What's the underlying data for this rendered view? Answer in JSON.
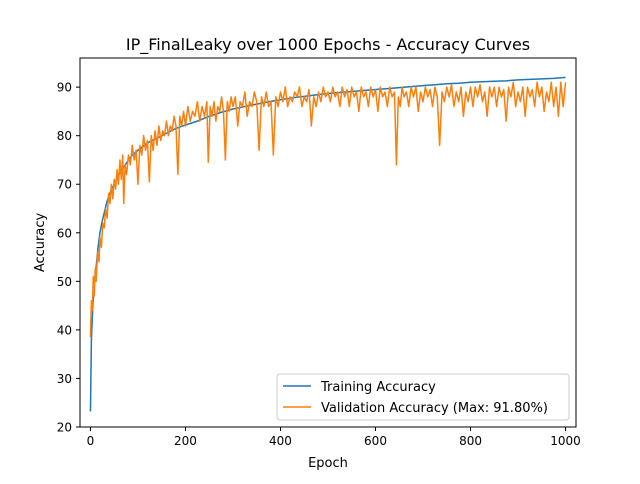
{
  "chart_data": {
    "type": "line",
    "title": "IP_FinalLeaky over 1000 Epochs - Accuracy Curves",
    "xlabel": "Epoch",
    "ylabel": "Accuracy",
    "xlim": [
      -22,
      1022
    ],
    "ylim": [
      20,
      96
    ],
    "xticks": [
      0,
      200,
      400,
      600,
      800,
      1000
    ],
    "yticks": [
      20,
      30,
      40,
      50,
      60,
      70,
      80,
      90
    ],
    "grid": false,
    "legend_position": "lower-right",
    "series": [
      {
        "name": "Training Accuracy",
        "color": "#1f77b4",
        "points": [
          [
            0,
            23.2
          ],
          [
            2,
            38
          ],
          [
            5,
            45
          ],
          [
            8,
            49
          ],
          [
            12,
            53
          ],
          [
            16,
            57
          ],
          [
            20,
            60
          ],
          [
            25,
            62.5
          ],
          [
            30,
            64.5
          ],
          [
            35,
            66.5
          ],
          [
            40,
            68
          ],
          [
            50,
            70
          ],
          [
            60,
            72
          ],
          [
            70,
            73.5
          ],
          [
            80,
            75
          ],
          [
            90,
            76.2
          ],
          [
            100,
            77
          ],
          [
            120,
            78.5
          ],
          [
            140,
            79.5
          ],
          [
            160,
            80.5
          ],
          [
            180,
            81.5
          ],
          [
            200,
            82.2
          ],
          [
            225,
            83
          ],
          [
            250,
            84
          ],
          [
            275,
            84.8
          ],
          [
            300,
            85.5
          ],
          [
            325,
            86
          ],
          [
            350,
            86.5
          ],
          [
            375,
            87
          ],
          [
            400,
            87.4
          ],
          [
            425,
            87.8
          ],
          [
            450,
            88.1
          ],
          [
            475,
            88.4
          ],
          [
            500,
            88.7
          ],
          [
            525,
            88.9
          ],
          [
            550,
            89.1
          ],
          [
            575,
            89.3
          ],
          [
            600,
            89.5
          ],
          [
            625,
            89.7
          ],
          [
            650,
            89.9
          ],
          [
            675,
            90.1
          ],
          [
            700,
            90.3
          ],
          [
            725,
            90.5
          ],
          [
            750,
            90.7
          ],
          [
            775,
            90.8
          ],
          [
            800,
            91
          ],
          [
            825,
            91.1
          ],
          [
            850,
            91.2
          ],
          [
            875,
            91.3
          ],
          [
            900,
            91.5
          ],
          [
            925,
            91.6
          ],
          [
            950,
            91.7
          ],
          [
            975,
            91.8
          ],
          [
            1000,
            92
          ]
        ]
      },
      {
        "name": "Validation Accuracy (Max: 91.80%)",
        "color": "#ff7f0e",
        "points": [
          [
            0,
            38.5
          ],
          [
            2,
            46
          ],
          [
            4,
            44
          ],
          [
            6,
            51
          ],
          [
            8,
            47
          ],
          [
            10,
            52.5
          ],
          [
            12,
            50
          ],
          [
            15,
            56
          ],
          [
            18,
            54
          ],
          [
            20,
            59
          ],
          [
            23,
            57
          ],
          [
            26,
            62
          ],
          [
            29,
            61
          ],
          [
            32,
            65
          ],
          [
            35,
            63
          ],
          [
            38,
            68
          ],
          [
            41,
            66
          ],
          [
            44,
            70
          ],
          [
            47,
            67
          ],
          [
            50,
            71
          ],
          [
            53,
            69
          ],
          [
            56,
            73
          ],
          [
            59,
            70
          ],
          [
            62,
            75
          ],
          [
            65,
            71
          ],
          [
            68,
            76
          ],
          [
            70,
            66
          ],
          [
            73,
            74
          ],
          [
            76,
            72
          ],
          [
            80,
            76
          ],
          [
            84,
            74
          ],
          [
            88,
            78
          ],
          [
            92,
            75
          ],
          [
            96,
            77
          ],
          [
            100,
            70
          ],
          [
            104,
            78
          ],
          [
            108,
            76
          ],
          [
            112,
            80
          ],
          [
            116,
            77
          ],
          [
            120,
            79
          ],
          [
            124,
            70.5
          ],
          [
            128,
            80
          ],
          [
            132,
            77
          ],
          [
            136,
            81
          ],
          [
            140,
            78
          ],
          [
            144,
            82
          ],
          [
            148,
            79
          ],
          [
            152,
            81
          ],
          [
            156,
            80
          ],
          [
            160,
            83
          ],
          [
            164,
            80
          ],
          [
            168,
            82
          ],
          [
            172,
            81
          ],
          [
            176,
            84
          ],
          [
            180,
            82
          ],
          [
            184,
            72
          ],
          [
            188,
            84
          ],
          [
            192,
            82
          ],
          [
            196,
            85
          ],
          [
            200,
            82
          ],
          [
            205,
            86
          ],
          [
            210,
            83
          ],
          [
            215,
            85
          ],
          [
            220,
            84
          ],
          [
            225,
            87
          ],
          [
            230,
            83
          ],
          [
            235,
            86
          ],
          [
            240,
            84
          ],
          [
            245,
            87
          ],
          [
            248,
            74.5
          ],
          [
            252,
            86
          ],
          [
            256,
            84
          ],
          [
            260,
            87
          ],
          [
            264,
            83
          ],
          [
            268,
            86
          ],
          [
            272,
            85
          ],
          [
            276,
            88
          ],
          [
            280,
            85
          ],
          [
            284,
            75
          ],
          [
            288,
            87
          ],
          [
            292,
            85
          ],
          [
            296,
            88
          ],
          [
            300,
            86
          ],
          [
            305,
            88
          ],
          [
            310,
            82
          ],
          [
            315,
            87
          ],
          [
            320,
            86
          ],
          [
            325,
            89
          ],
          [
            330,
            84
          ],
          [
            335,
            87
          ],
          [
            340,
            86
          ],
          [
            345,
            89
          ],
          [
            350,
            87
          ],
          [
            355,
            77
          ],
          [
            360,
            88
          ],
          [
            365,
            86
          ],
          [
            370,
            89
          ],
          [
            375,
            86
          ],
          [
            380,
            87
          ],
          [
            385,
            76
          ],
          [
            390,
            88
          ],
          [
            395,
            86
          ],
          [
            400,
            89
          ],
          [
            405,
            87
          ],
          [
            410,
            90
          ],
          [
            415,
            86
          ],
          [
            420,
            88
          ],
          [
            425,
            87
          ],
          [
            430,
            89
          ],
          [
            435,
            88
          ],
          [
            440,
            90
          ],
          [
            445,
            86
          ],
          [
            450,
            88
          ],
          [
            455,
            87
          ],
          [
            460,
            89.5
          ],
          [
            465,
            82
          ],
          [
            470,
            88
          ],
          [
            475,
            86
          ],
          [
            480,
            89
          ],
          [
            485,
            87
          ],
          [
            490,
            90
          ],
          [
            495,
            88
          ],
          [
            500,
            89
          ],
          [
            505,
            87
          ],
          [
            510,
            90
          ],
          [
            515,
            88
          ],
          [
            520,
            89
          ],
          [
            525,
            86
          ],
          [
            530,
            90
          ],
          [
            535,
            88
          ],
          [
            540,
            89.5
          ],
          [
            545,
            86
          ],
          [
            550,
            90
          ],
          [
            555,
            88
          ],
          [
            560,
            89
          ],
          [
            565,
            85
          ],
          [
            570,
            90
          ],
          [
            575,
            88
          ],
          [
            580,
            89
          ],
          [
            585,
            86
          ],
          [
            590,
            90
          ],
          [
            595,
            88
          ],
          [
            600,
            89.5
          ],
          [
            605,
            85
          ],
          [
            610,
            90
          ],
          [
            615,
            88
          ],
          [
            620,
            89
          ],
          [
            625,
            86
          ],
          [
            630,
            90
          ],
          [
            635,
            88
          ],
          [
            640,
            89
          ],
          [
            644,
            74
          ],
          [
            648,
            88
          ],
          [
            652,
            86
          ],
          [
            656,
            90
          ],
          [
            660,
            88
          ],
          [
            665,
            89
          ],
          [
            670,
            86
          ],
          [
            675,
            90
          ],
          [
            680,
            88
          ],
          [
            685,
            90
          ],
          [
            690,
            85
          ],
          [
            695,
            89
          ],
          [
            700,
            87
          ],
          [
            705,
            90
          ],
          [
            710,
            88
          ],
          [
            715,
            89.5
          ],
          [
            720,
            86
          ],
          [
            725,
            90
          ],
          [
            730,
            88
          ],
          [
            735,
            78
          ],
          [
            740,
            89
          ],
          [
            745,
            87
          ],
          [
            750,
            90
          ],
          [
            755,
            88
          ],
          [
            760,
            90.5
          ],
          [
            765,
            86
          ],
          [
            770,
            89
          ],
          [
            775,
            87
          ],
          [
            780,
            90
          ],
          [
            785,
            84
          ],
          [
            790,
            89
          ],
          [
            795,
            87
          ],
          [
            800,
            90
          ],
          [
            805,
            86
          ],
          [
            810,
            90
          ],
          [
            815,
            88
          ],
          [
            820,
            90.5
          ],
          [
            825,
            87
          ],
          [
            830,
            89
          ],
          [
            835,
            84
          ],
          [
            840,
            90
          ],
          [
            845,
            88
          ],
          [
            850,
            90
          ],
          [
            855,
            86
          ],
          [
            860,
            90
          ],
          [
            865,
            88
          ],
          [
            870,
            89.5
          ],
          [
            875,
            83
          ],
          [
            880,
            90
          ],
          [
            885,
            88
          ],
          [
            890,
            91
          ],
          [
            895,
            86
          ],
          [
            900,
            89
          ],
          [
            905,
            87
          ],
          [
            910,
            90
          ],
          [
            915,
            84
          ],
          [
            920,
            90
          ],
          [
            925,
            88
          ],
          [
            930,
            89.5
          ],
          [
            935,
            86
          ],
          [
            940,
            91
          ],
          [
            945,
            88
          ],
          [
            950,
            90
          ],
          [
            955,
            85
          ],
          [
            960,
            89
          ],
          [
            965,
            87
          ],
          [
            970,
            91
          ],
          [
            975,
            86
          ],
          [
            980,
            90
          ],
          [
            985,
            84
          ],
          [
            990,
            91
          ],
          [
            995,
            86
          ],
          [
            998,
            89
          ],
          [
            1000,
            91
          ]
        ]
      }
    ]
  }
}
